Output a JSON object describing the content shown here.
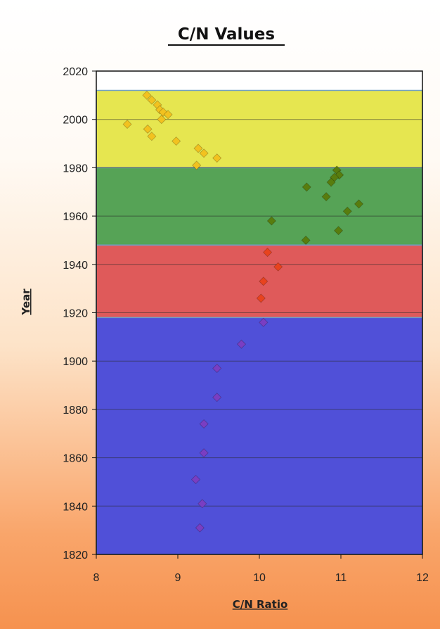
{
  "chart_data": {
    "type": "scatter",
    "title": "C/N Values",
    "xlabel": "C/N Ratio",
    "ylabel": "Year",
    "xlim": [
      8,
      12
    ],
    "ylim": [
      1820,
      2020
    ],
    "xticks": [
      8,
      9,
      10,
      11,
      12
    ],
    "yticks": [
      1820,
      1840,
      1860,
      1880,
      1900,
      1920,
      1940,
      1960,
      1980,
      2000,
      2020
    ],
    "grid": "horizontal",
    "legend": "none",
    "bands": [
      {
        "y0": 1980,
        "y1": 2012,
        "color": "#e6e650"
      },
      {
        "y0": 1948,
        "y1": 1980,
        "color": "#56a356"
      },
      {
        "y0": 1918,
        "y1": 1948,
        "color": "#df5a5a"
      },
      {
        "y0": 1820,
        "y1": 1918,
        "color": "#5050d8"
      }
    ],
    "series": [
      {
        "color": "#f2c21f",
        "points": [
          [
            8.62,
            2010
          ],
          [
            8.68,
            2008
          ],
          [
            8.75,
            2006
          ],
          [
            8.78,
            2004
          ],
          [
            8.82,
            2003
          ],
          [
            8.88,
            2002
          ],
          [
            8.8,
            2000
          ],
          [
            8.38,
            1998
          ],
          [
            8.63,
            1996
          ],
          [
            8.68,
            1993
          ],
          [
            8.98,
            1991
          ],
          [
            9.25,
            1988
          ],
          [
            9.32,
            1986
          ],
          [
            9.48,
            1984
          ],
          [
            9.23,
            1981
          ]
        ]
      },
      {
        "color": "#587d0e",
        "points": [
          [
            10.95,
            1979
          ],
          [
            10.98,
            1977
          ],
          [
            10.92,
            1976
          ],
          [
            10.88,
            1974
          ],
          [
            10.58,
            1972
          ],
          [
            10.82,
            1968
          ],
          [
            11.22,
            1965
          ],
          [
            11.08,
            1962
          ],
          [
            10.15,
            1958
          ],
          [
            10.97,
            1954
          ],
          [
            10.57,
            1950
          ]
        ]
      },
      {
        "color": "#e8431e",
        "points": [
          [
            10.1,
            1945
          ],
          [
            10.23,
            1939
          ],
          [
            10.05,
            1933
          ],
          [
            10.02,
            1926
          ]
        ]
      },
      {
        "color": "#7a3ec2",
        "points": [
          [
            10.05,
            1916
          ],
          [
            9.78,
            1907
          ],
          [
            9.48,
            1897
          ],
          [
            9.48,
            1885
          ],
          [
            9.32,
            1874
          ],
          [
            9.32,
            1862
          ],
          [
            9.22,
            1851
          ],
          [
            9.3,
            1841
          ],
          [
            9.27,
            1831
          ]
        ]
      }
    ]
  }
}
